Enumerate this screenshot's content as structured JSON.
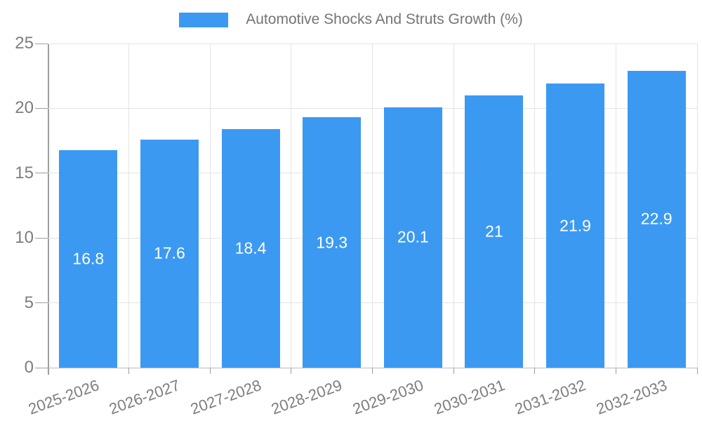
{
  "legend": {
    "label": "Automotive Shocks And Struts Growth (%)",
    "swatch_color": "#3B99F2"
  },
  "chart_data": {
    "type": "bar",
    "title": "Automotive Shocks And Struts Growth (%)",
    "categories": [
      "2025-2026",
      "2026-2027",
      "2027-2028",
      "2028-2029",
      "2029-2030",
      "2030-2031",
      "2031-2032",
      "2032-2033"
    ],
    "values": [
      16.8,
      17.6,
      18.4,
      19.3,
      20.1,
      21,
      21.9,
      22.9
    ],
    "value_labels": [
      "16.8",
      "17.6",
      "18.4",
      "19.3",
      "20.1",
      "21",
      "21.9",
      "22.9"
    ],
    "xlabel": "",
    "ylabel": "",
    "ylim": [
      0,
      25
    ],
    "yticks": [
      0,
      5,
      10,
      15,
      20,
      25
    ],
    "grid": true,
    "legend_position": "top",
    "bar_color": "#3B99F2",
    "value_label_color": "#FFFFFF",
    "axis_text_color": "#7D7D7D",
    "x_label_rotation_deg": -20
  }
}
